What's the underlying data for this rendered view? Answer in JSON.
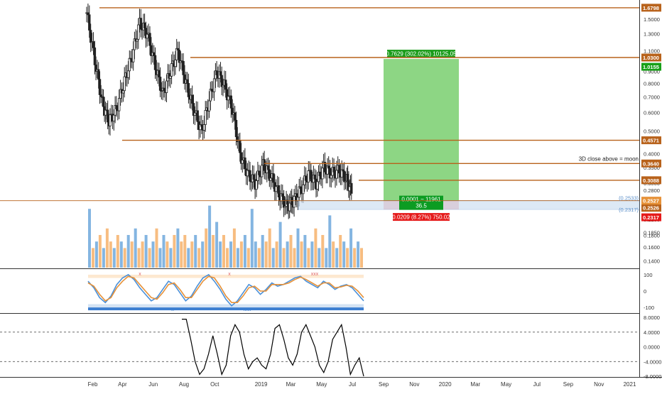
{
  "colors": {
    "level_line": "#b8621b",
    "level_badge": "#b8621b",
    "up_candle": "#1f1f1f",
    "target_zone": "#79cf6e",
    "target_label": "#1a9c1a",
    "stop_zone": "#f19a9a",
    "stop_label": "#e51a1a",
    "entry_band": "#cfe0f2",
    "entry_label": "#0c9c22",
    "volume_up": "#6fa8dc",
    "volume_down": "#f6b26b",
    "stoch_k": "#4a90d9",
    "stoch_d": "#e69138",
    "osc_line": "#000000",
    "grid_dash": "#555555",
    "axis_text": "#333333"
  },
  "chart_data": [
    {
      "type": "candlestick",
      "title": "",
      "y_scale": "log",
      "ylim": [
        0.13,
        1.75
      ],
      "y_ticks": [
        "1.5000",
        "1.3000",
        "1.1000",
        "0.9000",
        "0.8000",
        "0.7000",
        "0.6000",
        "0.5000",
        "0.4000",
        "0.3500",
        "0.3000",
        "0.2800",
        "0.2500",
        "0.2100",
        "0.1850",
        "0.1800",
        "0.1600",
        "0.1400"
      ],
      "y_tick_values": [
        1.5,
        1.3,
        1.1,
        0.9,
        0.8,
        0.7,
        0.6,
        0.5,
        0.4,
        0.35,
        0.3,
        0.28,
        0.25,
        0.21,
        0.185,
        0.18,
        0.16,
        0.14
      ],
      "x_ticks": [
        "Feb",
        "Apr",
        "Jun",
        "Aug",
        "Oct",
        "2019",
        "Mar",
        "May",
        "Jul",
        "Sep",
        "Nov",
        "2020",
        "Mar",
        "May",
        "Jul",
        "Sep",
        "Nov",
        "2021"
      ],
      "horizontal_levels": [
        {
          "value": 1.6798,
          "label": "1.6798"
        },
        {
          "value": 1.03,
          "label": "1.0300"
        },
        {
          "value": 0.4571,
          "label": "0.4571"
        },
        {
          "value": 0.364,
          "label": "0.3640"
        },
        {
          "value": 0.3088,
          "label": "0.3088"
        },
        {
          "value": 0.2526,
          "label": "0.2526"
        }
      ],
      "extra_price_badges": [
        {
          "value": 1.0155,
          "label": "1.0155",
          "color": "green"
        },
        {
          "value": 0.2527,
          "label": "0.2527",
          "color": "orange"
        },
        {
          "value": 0.2317,
          "label": "0.2317",
          "color": "red"
        }
      ],
      "range_labels": [
        {
          "value": 0.2533,
          "label": "(0.2533)"
        },
        {
          "value": 0.2317,
          "label": "(0.2317)"
        }
      ],
      "annotation": {
        "text": "3D close above = moon",
        "value": 0.364
      },
      "position_tool": {
        "entry": 0.2527,
        "target": 1.0155,
        "stop": 0.2317,
        "target_text": "0.7629 (302.02%) 10125.05",
        "entry_text_1": "0.0001 ~ 11961",
        "entry_text_2": "36.5",
        "stop_text": "0.0209 (8.27%) 750.02"
      },
      "series": [
        {
          "name": "",
          "description": "price candles Jan 2018 – Jul 2019",
          "points": [
            {
              "x": "2018-01-20",
              "close": 1.6
            },
            {
              "x": "2018-02-05",
              "close": 1.0
            },
            {
              "x": "2018-02-20",
              "close": 0.66
            },
            {
              "x": "2018-03-05",
              "close": 0.55
            },
            {
              "x": "2018-03-20",
              "close": 0.62
            },
            {
              "x": "2018-04-05",
              "close": 0.82
            },
            {
              "x": "2018-04-20",
              "close": 1.05
            },
            {
              "x": "2018-05-05",
              "close": 1.45
            },
            {
              "x": "2018-05-20",
              "close": 1.3
            },
            {
              "x": "2018-06-05",
              "close": 0.95
            },
            {
              "x": "2018-06-20",
              "close": 0.72
            },
            {
              "x": "2018-07-05",
              "close": 0.9
            },
            {
              "x": "2018-07-20",
              "close": 1.1
            },
            {
              "x": "2018-08-05",
              "close": 0.8
            },
            {
              "x": "2018-08-20",
              "close": 0.62
            },
            {
              "x": "2018-09-05",
              "close": 0.5
            },
            {
              "x": "2018-09-20",
              "close": 0.68
            },
            {
              "x": "2018-10-05",
              "close": 0.9
            },
            {
              "x": "2018-10-20",
              "close": 0.78
            },
            {
              "x": "2018-11-05",
              "close": 0.62
            },
            {
              "x": "2018-11-20",
              "close": 0.4
            },
            {
              "x": "2018-12-05",
              "close": 0.33
            },
            {
              "x": "2018-12-20",
              "close": 0.3
            },
            {
              "x": "2019-01-05",
              "close": 0.36
            },
            {
              "x": "2019-01-20",
              "close": 0.32
            },
            {
              "x": "2019-02-05",
              "close": 0.27
            },
            {
              "x": "2019-02-20",
              "close": 0.24
            },
            {
              "x": "2019-03-05",
              "close": 0.25
            },
            {
              "x": "2019-03-20",
              "close": 0.28
            },
            {
              "x": "2019-04-05",
              "close": 0.33
            },
            {
              "x": "2019-04-20",
              "close": 0.3
            },
            {
              "x": "2019-05-05",
              "close": 0.35
            },
            {
              "x": "2019-05-20",
              "close": 0.33
            },
            {
              "x": "2019-06-05",
              "close": 0.34
            },
            {
              "x": "2019-06-20",
              "close": 0.31
            },
            {
              "x": "2019-07-01",
              "close": 0.27
            }
          ]
        }
      ]
    },
    {
      "type": "bar",
      "title": "",
      "description": "volume histogram",
      "values": [
        0.9,
        0.3,
        0.4,
        0.5,
        0.3,
        0.6,
        0.4,
        0.3,
        0.5,
        0.4,
        0.3,
        0.5,
        0.4,
        0.6,
        0.3,
        0.4,
        0.5,
        0.3,
        0.4,
        0.6,
        0.3,
        0.5,
        0.4,
        0.3,
        0.5,
        0.6,
        0.4,
        0.5,
        0.3,
        0.4,
        0.5,
        0.3,
        0.4,
        0.6,
        0.95,
        0.5,
        0.7,
        0.4,
        0.5,
        0.3,
        0.4,
        0.6,
        0.3,
        0.4,
        0.5,
        0.3,
        0.9,
        0.4,
        0.3,
        0.5,
        0.4,
        0.6,
        0.3,
        0.4,
        0.7,
        0.3,
        0.4,
        0.5,
        0.3,
        0.6,
        0.4,
        0.5,
        0.3,
        0.4,
        0.6,
        0.3,
        0.5,
        0.3,
        0.8,
        0.4,
        0.3,
        0.5,
        0.4,
        0.3,
        0.6,
        0.3,
        0.4,
        0.3
      ],
      "direction": [
        "u",
        "d",
        "u",
        "d",
        "u",
        "d",
        "d",
        "u",
        "d",
        "u",
        "d",
        "u",
        "d",
        "u",
        "d",
        "d",
        "u",
        "d",
        "u",
        "d",
        "u",
        "u",
        "d",
        "u",
        "d",
        "u",
        "d",
        "d",
        "u",
        "d",
        "u",
        "d",
        "u",
        "d",
        "u",
        "d",
        "u",
        "u",
        "d",
        "d",
        "u",
        "d",
        "u",
        "d",
        "u",
        "d",
        "u",
        "u",
        "d",
        "u",
        "d",
        "d",
        "u",
        "d",
        "u",
        "d",
        "u",
        "d",
        "d",
        "u",
        "d",
        "u",
        "d",
        "u",
        "d",
        "u",
        "d",
        "u",
        "u",
        "d",
        "u",
        "d",
        "u",
        "d",
        "u",
        "d",
        "u",
        "d"
      ]
    },
    {
      "type": "line",
      "title": "",
      "description": "stochastic RSI",
      "y_ticks": [
        "100",
        "0",
        "-100"
      ],
      "y_tick_values": [
        100,
        0,
        -100
      ],
      "marker_top": [
        "x",
        "x",
        "xxx"
      ],
      "marker_bottom": [
        "x",
        "xxx"
      ],
      "series": [
        {
          "name": "",
          "values": [
            60,
            20,
            -40,
            -70,
            -30,
            40,
            80,
            100,
            70,
            20,
            -20,
            -60,
            -40,
            10,
            60,
            40,
            -10,
            -60,
            -30,
            30,
            80,
            100,
            60,
            10,
            -50,
            -90,
            -60,
            -10,
            40,
            20,
            -20,
            10,
            50,
            30,
            40,
            60,
            80,
            90,
            60,
            40,
            20,
            60,
            40,
            10,
            30,
            40,
            20,
            -20,
            -60
          ]
        },
        {
          "name": "",
          "values": [
            50,
            30,
            -20,
            -60,
            -40,
            20,
            60,
            90,
            80,
            40,
            0,
            -40,
            -50,
            -10,
            40,
            50,
            10,
            -40,
            -40,
            10,
            60,
            90,
            80,
            30,
            -30,
            -70,
            -70,
            -30,
            20,
            30,
            0,
            0,
            40,
            40,
            40,
            50,
            70,
            85,
            70,
            50,
            30,
            50,
            50,
            20,
            25,
            35,
            30,
            0,
            -40
          ]
        }
      ]
    },
    {
      "type": "line",
      "title": "",
      "description": "oscillator",
      "y_ticks": [
        "8.0000",
        "4.0000",
        "0.0000",
        "-4.0000",
        "-8.0000"
      ],
      "y_tick_values": [
        8,
        4,
        0,
        -4,
        -8
      ],
      "dashed_levels": [
        4,
        -4
      ],
      "series": [
        {
          "name": "",
          "values": [
            7.5,
            7.5,
            2,
            -4,
            -7.5,
            -6,
            -2,
            3,
            -2,
            -7.5,
            -5,
            3,
            6,
            4,
            -2,
            -6,
            -4,
            -3,
            -5,
            -6,
            -2,
            5,
            6,
            2,
            -3,
            -5,
            -2,
            4,
            6,
            3,
            0,
            -5,
            -7,
            -4,
            2,
            4,
            6,
            0,
            -7.5,
            -5,
            -3,
            -8
          ]
        }
      ]
    }
  ]
}
